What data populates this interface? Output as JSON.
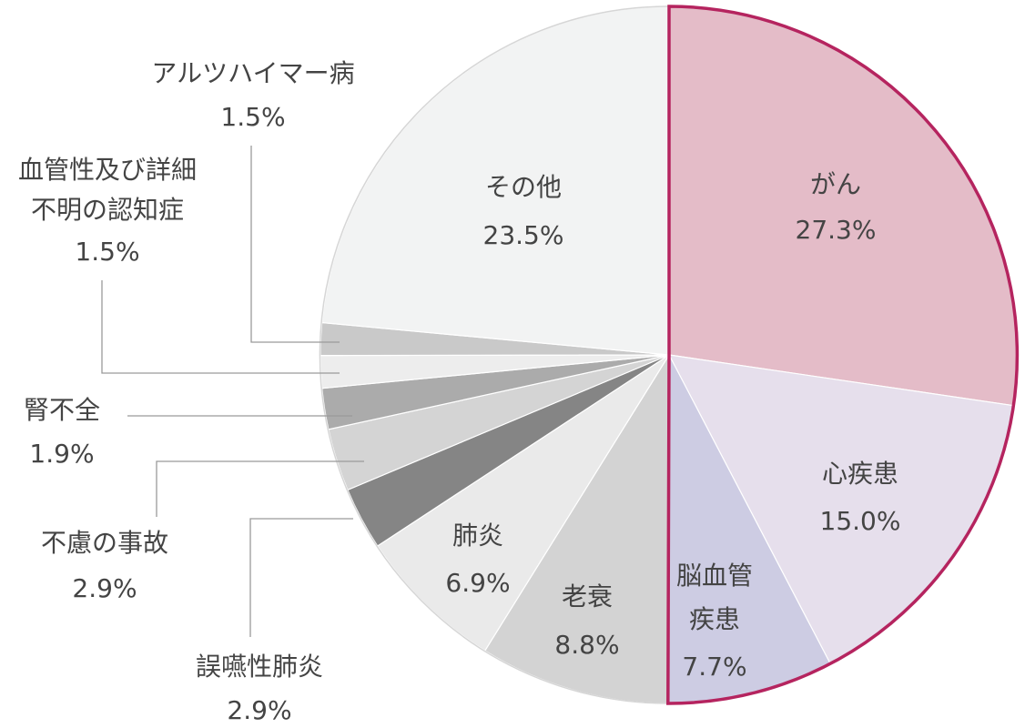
{
  "chart_data": {
    "type": "pie",
    "start_angle_deg": 0,
    "direction": "clockwise",
    "stroke_color": "#ffffff",
    "highlight_stroke_color": "#B5245F",
    "label_color": "#444444",
    "leader_line_color": "#9a9a9a",
    "slices": [
      {
        "label": "がん",
        "value": 27.3,
        "value_label": "27.3%",
        "color": "#E4BCC8",
        "highlight": true
      },
      {
        "label": "心疾患",
        "value": 15.0,
        "value_label": "15.0%",
        "color": "#E6DFEC",
        "highlight": true
      },
      {
        "label": "脳血管疾患",
        "value": 7.7,
        "value_label": "7.7%",
        "color": "#CDCCE3",
        "highlight": true
      },
      {
        "label": "老衰",
        "value": 8.8,
        "value_label": "8.8%",
        "color": "#D3D3D3",
        "highlight": false
      },
      {
        "label": "肺炎",
        "value": 6.9,
        "value_label": "6.9%",
        "color": "#EAEAEA",
        "highlight": false
      },
      {
        "label": "誤嚥性肺炎",
        "value": 2.9,
        "value_label": "2.9%",
        "color": "#858585",
        "highlight": false
      },
      {
        "label": "不慮の事故",
        "value": 2.9,
        "value_label": "2.9%",
        "color": "#D4D4D4",
        "highlight": false
      },
      {
        "label": "腎不全",
        "value": 1.9,
        "value_label": "1.9%",
        "color": "#ABABAB",
        "highlight": false
      },
      {
        "label": "血管性及び詳細不明の認知症",
        "value": 1.5,
        "value_label": "1.5%",
        "color": "#EDEDED",
        "highlight": false
      },
      {
        "label": "アルツハイマー病",
        "value": 1.5,
        "value_label": "1.5%",
        "color": "#C9C9C9",
        "highlight": false
      },
      {
        "label": "その他",
        "value": 23.5,
        "value_label": "23.5%",
        "color": "#F2F3F3",
        "highlight": false
      }
    ]
  }
}
